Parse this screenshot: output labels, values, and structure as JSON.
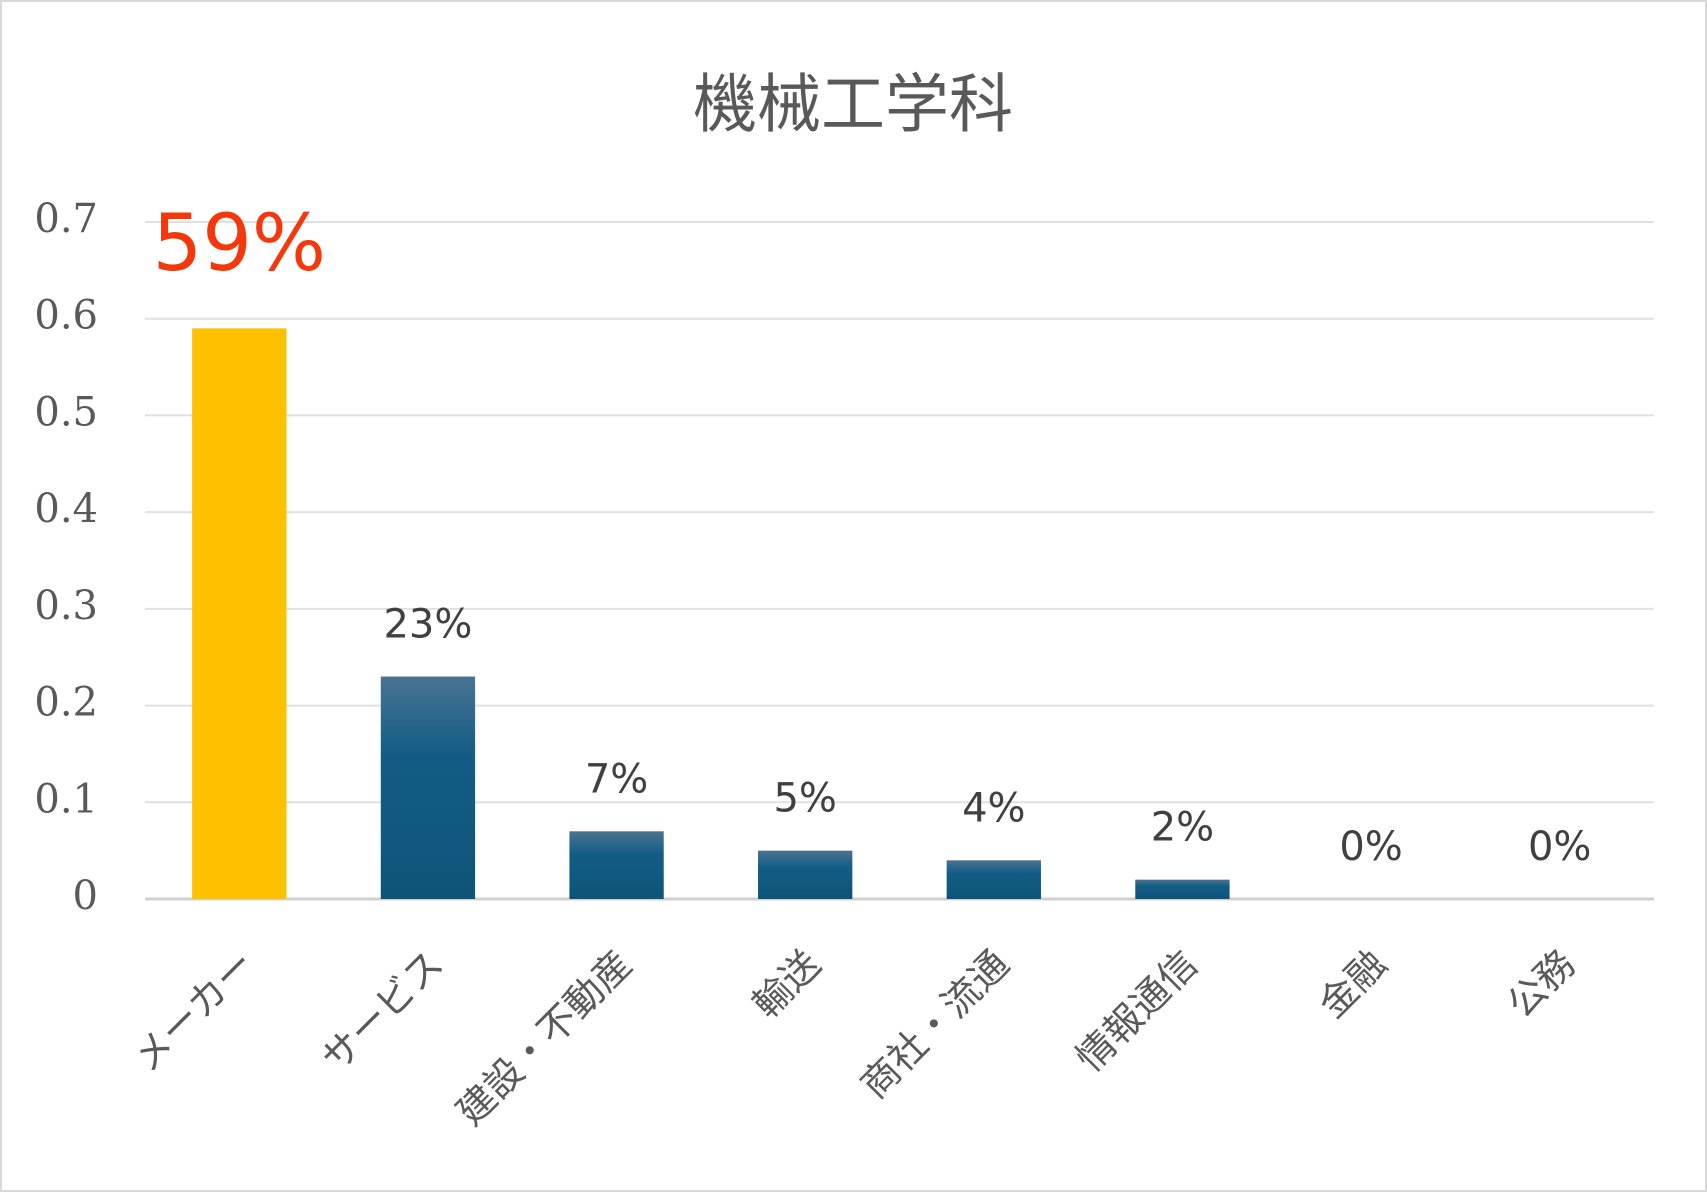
{
  "chart_data": {
    "type": "bar",
    "title": "機械工学科",
    "categories": [
      "メーカー",
      "サービス",
      "建設・不動産",
      "輸送",
      "商社・流通",
      "情報通信",
      "金融",
      "公務"
    ],
    "values": [
      0.59,
      0.23,
      0.07,
      0.05,
      0.04,
      0.02,
      0,
      0
    ],
    "value_labels": [
      "59%",
      "23%",
      "7%",
      "5%",
      "4%",
      "2%",
      "0%",
      "0%"
    ],
    "colors": [
      "#ffc000",
      "#125d85",
      "#125d85",
      "#125d85",
      "#125d85",
      "#125d85",
      "#125d85",
      "#125d85"
    ],
    "label_colors": [
      "#f4380c",
      "#404040",
      "#404040",
      "#404040",
      "#404040",
      "#404040",
      "#404040",
      "#404040"
    ],
    "ylim": [
      0,
      0.7
    ],
    "yticks": [
      0,
      0.1,
      0.2,
      0.3,
      0.4,
      0.5,
      0.6,
      0.7
    ],
    "grid": true
  }
}
